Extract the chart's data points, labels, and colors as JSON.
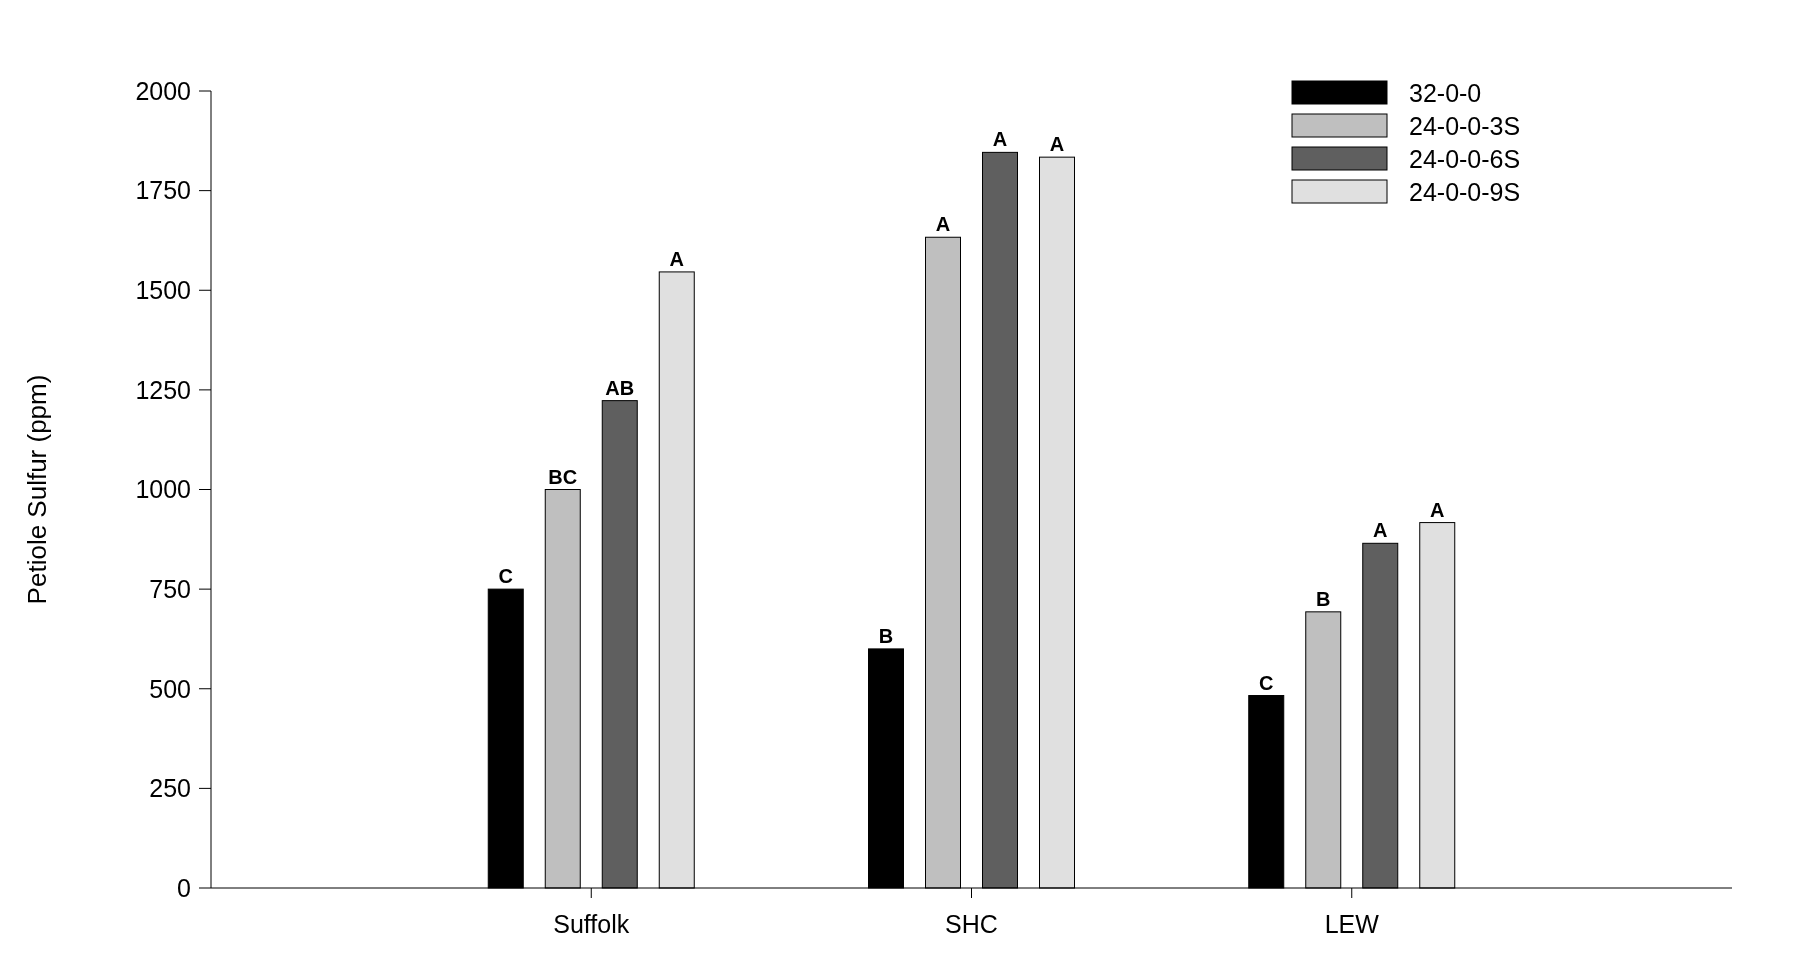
{
  "chart_data": {
    "type": "bar",
    "ylabel": "Petiole Sulfur (ppm)",
    "categories": [
      "Suffolk",
      "SHC",
      "LEW"
    ],
    "series": [
      {
        "name": "32-0-0",
        "color": "#000000",
        "values": [
          750,
          600,
          483
        ],
        "value_labels": [
          "C",
          "B",
          "C"
        ]
      },
      {
        "name": "24-0-0-3S",
        "color": "#bfbfbf",
        "values": [
          1000,
          1633,
          693
        ],
        "value_labels": [
          "BC",
          "A",
          "B"
        ]
      },
      {
        "name": "24-0-0-6S",
        "color": "#5f5f5f",
        "values": [
          1223,
          1846,
          865
        ],
        "value_labels": [
          "AB",
          "A",
          "A"
        ]
      },
      {
        "name": "24-0-0-9S",
        "color": "#e0e0e0",
        "values": [
          1546,
          1834,
          917
        ],
        "value_labels": [
          "A",
          "A",
          "A"
        ]
      }
    ],
    "ylim": [
      0,
      2000
    ],
    "yticks": [
      0,
      250,
      500,
      750,
      1000,
      1250,
      1500,
      1750,
      2000
    ],
    "legend": "top right",
    "grid": false
  }
}
